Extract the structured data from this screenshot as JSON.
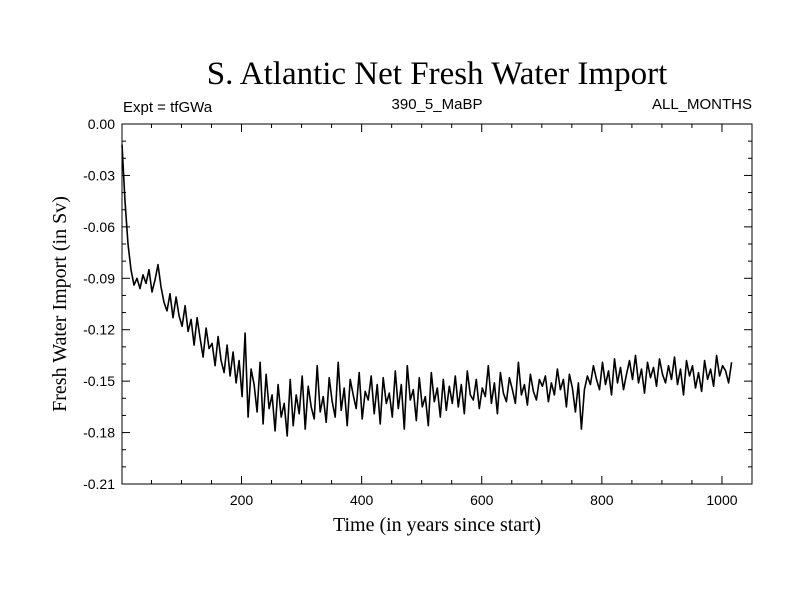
{
  "chart_data": {
    "type": "line",
    "title": "S. Atlantic Net Fresh Water Import",
    "subtitle_left": "Expt = tfGWa",
    "subtitle_center": "390_5_MaBP",
    "subtitle_right": "ALL_MONTHS",
    "xlabel": "Time (in years since start)",
    "ylabel": "Fresh Water Import (in Sv)",
    "xlim": [
      1,
      1050
    ],
    "ylim": [
      -0.21,
      0.0
    ],
    "x_ticks": [
      200,
      400,
      600,
      800,
      1000
    ],
    "x_tick_labels": [
      "200",
      "400",
      "600",
      "800",
      "1000"
    ],
    "y_ticks": [
      0.0,
      -0.03,
      -0.06,
      -0.09,
      -0.12,
      -0.15,
      -0.18,
      -0.21
    ],
    "y_tick_labels": [
      "0.00",
      "-0.03",
      "-0.06",
      "-0.09",
      "-0.12",
      "-0.15",
      "-0.18",
      "-0.21"
    ],
    "grid": false,
    "series": [
      {
        "name": "Fresh Water Import",
        "x_start": 1,
        "x_step": 5,
        "values": [
          -0.012,
          -0.045,
          -0.07,
          -0.085,
          -0.094,
          -0.09,
          -0.096,
          -0.088,
          -0.093,
          -0.085,
          -0.098,
          -0.091,
          -0.082,
          -0.095,
          -0.104,
          -0.109,
          -0.099,
          -0.113,
          -0.101,
          -0.112,
          -0.118,
          -0.106,
          -0.121,
          -0.114,
          -0.129,
          -0.113,
          -0.125,
          -0.136,
          -0.119,
          -0.131,
          -0.128,
          -0.141,
          -0.124,
          -0.138,
          -0.145,
          -0.129,
          -0.147,
          -0.133,
          -0.151,
          -0.138,
          -0.159,
          -0.122,
          -0.171,
          -0.143,
          -0.152,
          -0.168,
          -0.139,
          -0.175,
          -0.146,
          -0.166,
          -0.158,
          -0.179,
          -0.152,
          -0.171,
          -0.163,
          -0.182,
          -0.149,
          -0.176,
          -0.158,
          -0.169,
          -0.147,
          -0.178,
          -0.153,
          -0.165,
          -0.172,
          -0.141,
          -0.168,
          -0.159,
          -0.174,
          -0.148,
          -0.162,
          -0.171,
          -0.139,
          -0.167,
          -0.154,
          -0.176,
          -0.149,
          -0.158,
          -0.166,
          -0.145,
          -0.172,
          -0.156,
          -0.161,
          -0.147,
          -0.169,
          -0.152,
          -0.175,
          -0.148,
          -0.163,
          -0.157,
          -0.171,
          -0.144,
          -0.166,
          -0.152,
          -0.178,
          -0.141,
          -0.161,
          -0.155,
          -0.173,
          -0.148,
          -0.165,
          -0.159,
          -0.176,
          -0.145,
          -0.162,
          -0.154,
          -0.171,
          -0.149,
          -0.167,
          -0.153,
          -0.163,
          -0.147,
          -0.165,
          -0.152,
          -0.169,
          -0.144,
          -0.158,
          -0.161,
          -0.149,
          -0.166,
          -0.154,
          -0.159,
          -0.141,
          -0.163,
          -0.151,
          -0.169,
          -0.145,
          -0.157,
          -0.162,
          -0.148,
          -0.155,
          -0.163,
          -0.139,
          -0.158,
          -0.152,
          -0.164,
          -0.146,
          -0.156,
          -0.161,
          -0.149,
          -0.153,
          -0.147,
          -0.162,
          -0.151,
          -0.158,
          -0.143,
          -0.155,
          -0.149,
          -0.165,
          -0.146,
          -0.154,
          -0.168,
          -0.151,
          -0.178,
          -0.155,
          -0.147,
          -0.152,
          -0.141,
          -0.149,
          -0.155,
          -0.139,
          -0.152,
          -0.144,
          -0.158,
          -0.137,
          -0.151,
          -0.142,
          -0.155,
          -0.146,
          -0.138,
          -0.149,
          -0.135,
          -0.151,
          -0.143,
          -0.157,
          -0.139,
          -0.148,
          -0.142,
          -0.153,
          -0.137,
          -0.146,
          -0.151,
          -0.141,
          -0.149,
          -0.136,
          -0.152,
          -0.143,
          -0.158,
          -0.138,
          -0.147,
          -0.141,
          -0.154,
          -0.145,
          -0.156,
          -0.138,
          -0.149,
          -0.143,
          -0.153,
          -0.135,
          -0.147,
          -0.141,
          -0.144,
          -0.151,
          -0.139
        ],
        "color": "#000000"
      }
    ]
  }
}
